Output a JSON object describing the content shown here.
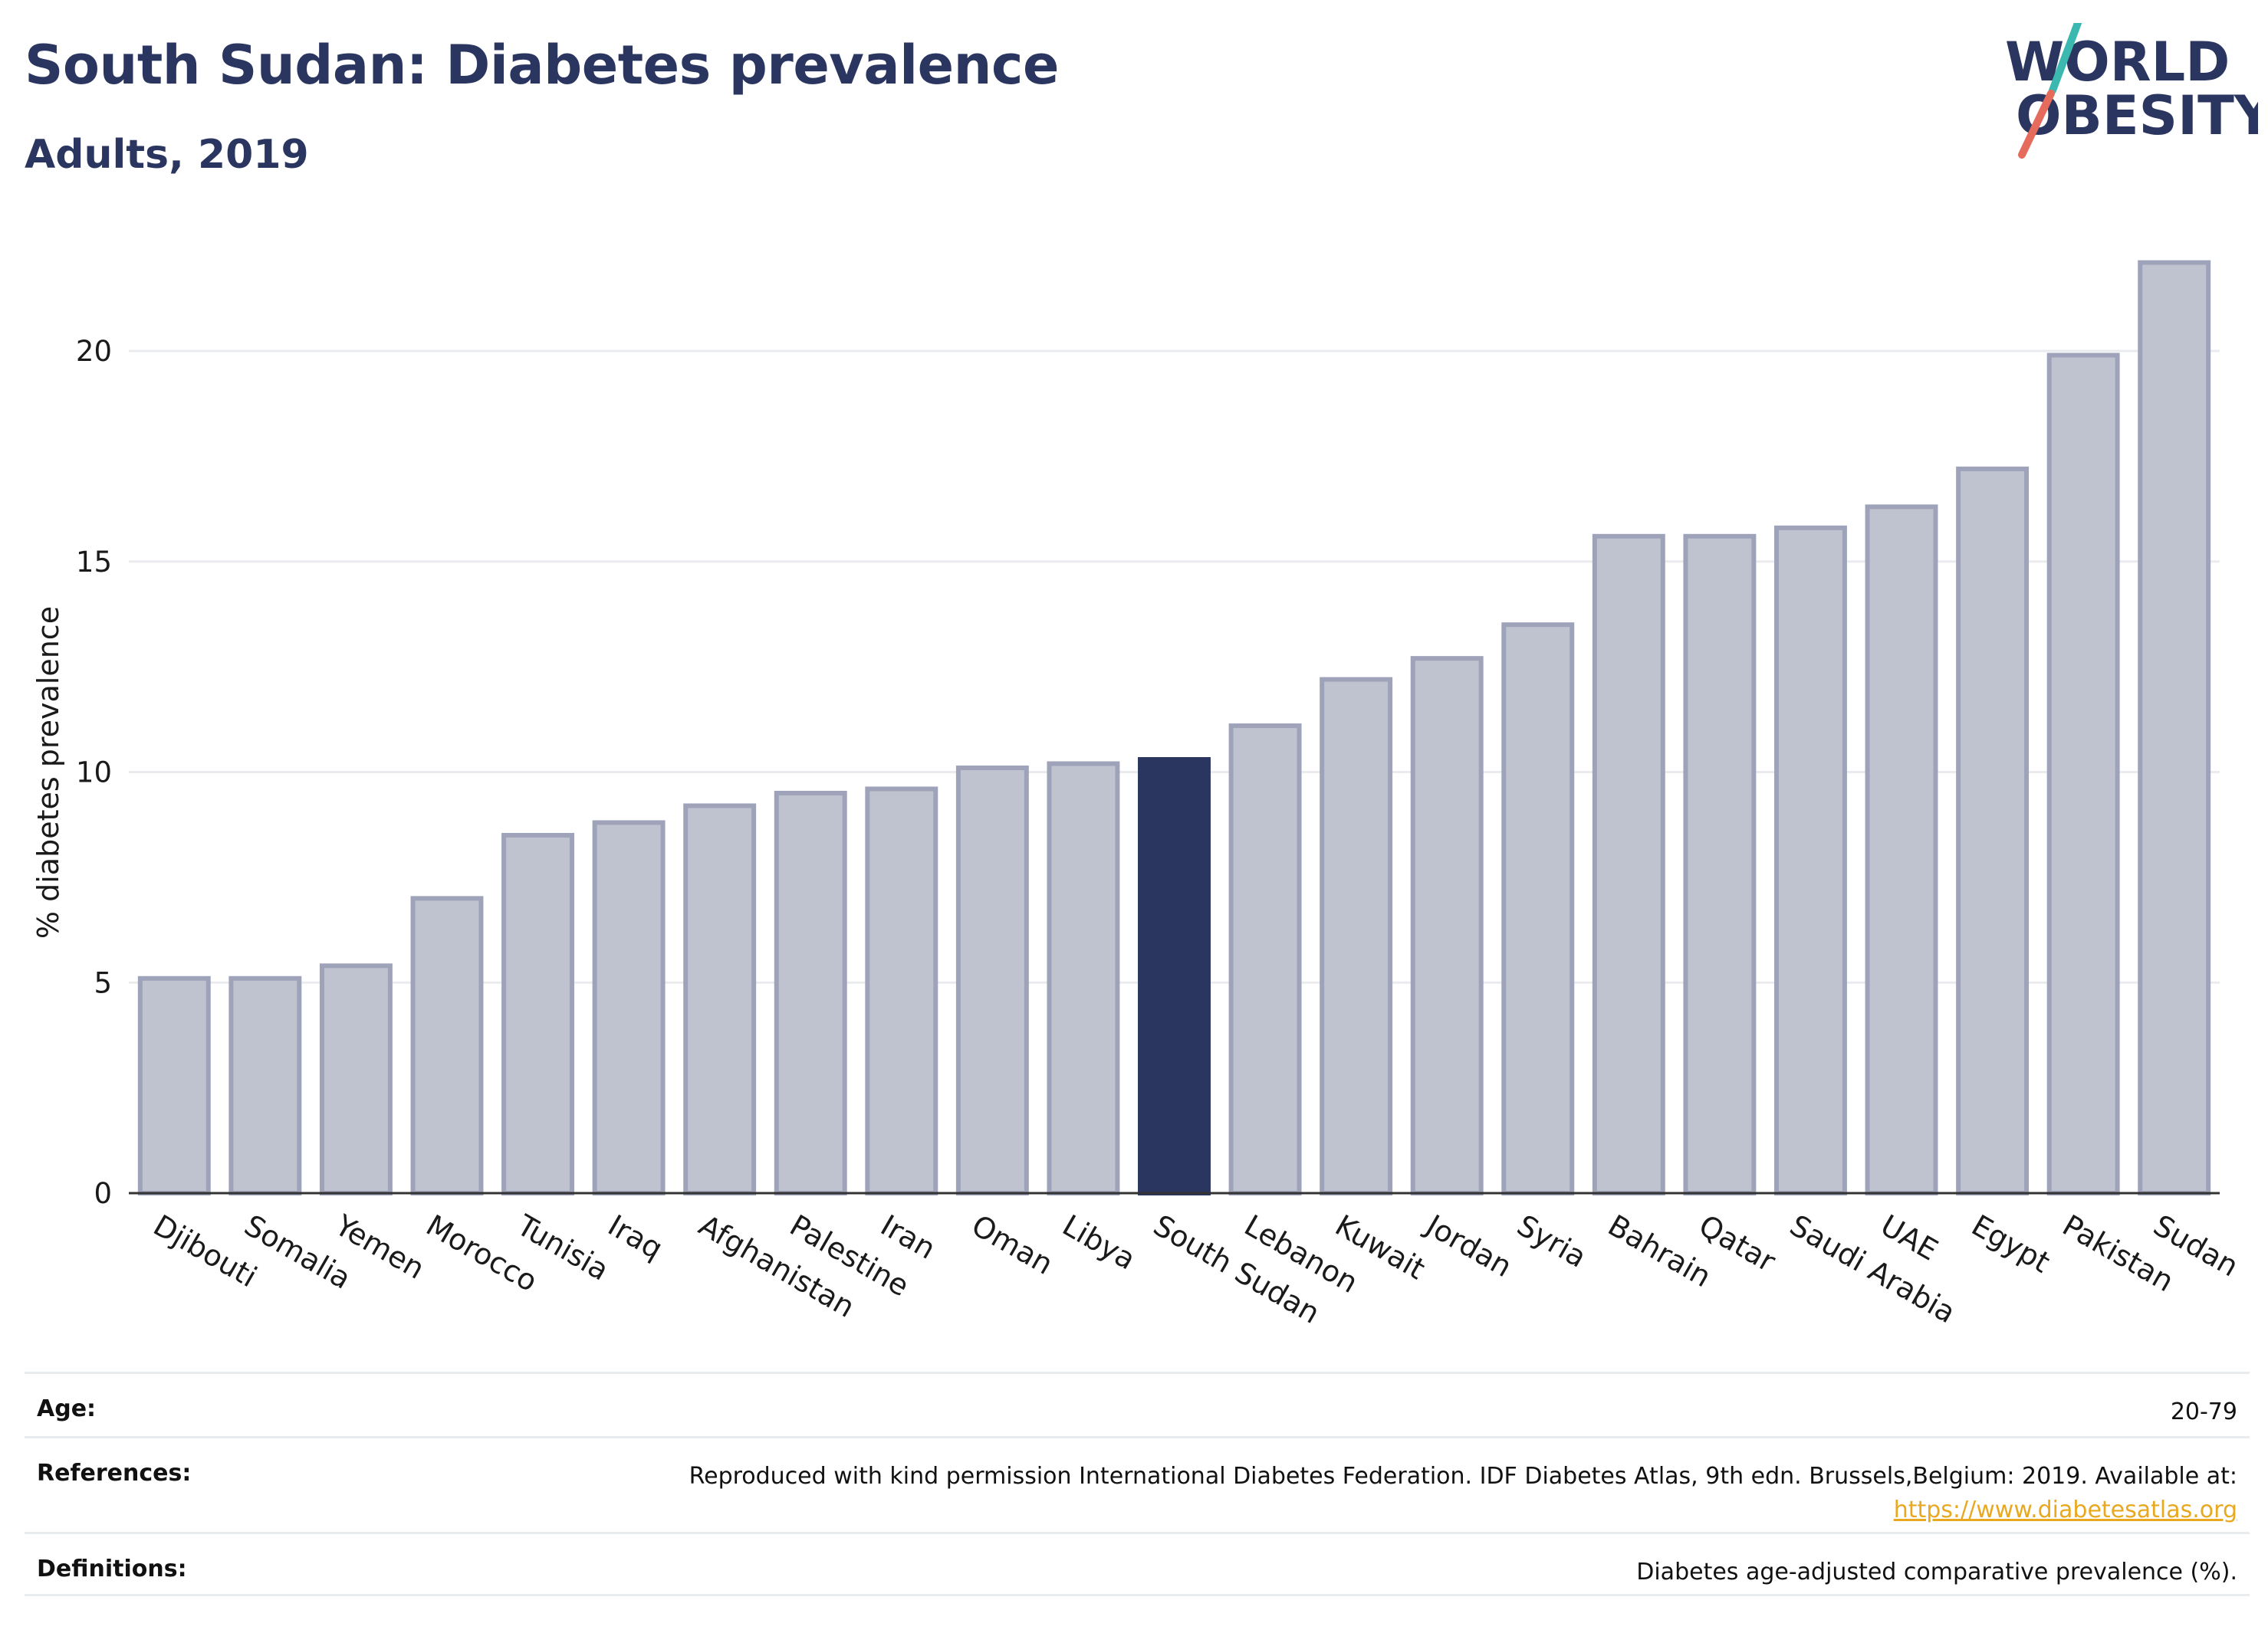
{
  "header": {
    "title": "South Sudan: Diabetes prevalence",
    "subtitle": "Adults, 2019"
  },
  "logo": {
    "line1": "WORLD",
    "line2": "OBESITY",
    "colors": {
      "text": "#2b3660",
      "slash_top": "#3bb8b0",
      "slash_bottom": "#e56b5d"
    }
  },
  "chart_data": {
    "type": "bar",
    "ylabel": "% diabetes prevalence",
    "xlabel": "",
    "ylim": [
      0,
      22.5
    ],
    "yticks": [
      0,
      5,
      10,
      15,
      20
    ],
    "grid": true,
    "highlight": "South Sudan",
    "colors": {
      "bar": "#bfc3d0",
      "bar_edge": "#9ea3ba",
      "highlight": "#2b3660"
    },
    "categories": [
      "Djibouti",
      "Somalia",
      "Yemen",
      "Morocco",
      "Tunisia",
      "Iraq",
      "Afghanistan",
      "Palestine",
      "Iran",
      "Oman",
      "Libya",
      "South Sudan",
      "Lebanon",
      "Kuwait",
      "Jordan",
      "Syria",
      "Bahrain",
      "Qatar",
      "Saudi Arabia",
      "UAE",
      "Egypt",
      "Pakistan",
      "Sudan"
    ],
    "values": [
      5.1,
      5.1,
      5.4,
      7.0,
      8.5,
      8.8,
      9.2,
      9.5,
      9.6,
      10.1,
      10.2,
      10.3,
      11.1,
      12.2,
      12.7,
      13.5,
      15.6,
      15.6,
      15.8,
      16.3,
      17.2,
      19.9,
      22.1
    ]
  },
  "info": {
    "age": {
      "label": "Age:",
      "value": "20-79"
    },
    "references": {
      "label": "References:",
      "text": "Reproduced with kind permission International Diabetes Federation. IDF Diabetes Atlas, 9th edn. Brussels,Belgium: 2019. Available at:",
      "link": "https://www.diabetesatlas.org"
    },
    "definitions": {
      "label": "Definitions:",
      "value": "Diabetes age-adjusted comparative prevalence (%)."
    }
  }
}
